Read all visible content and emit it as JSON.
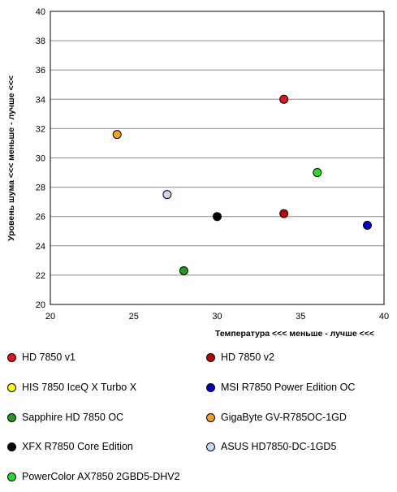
{
  "chart_data": {
    "type": "scatter",
    "title": "",
    "xlabel": "Температура <<< меньше - лучше <<<",
    "ylabel": "Уровень шума <<< меньше - лучше <<<",
    "xlim": [
      20,
      40
    ],
    "ylim": [
      20,
      40
    ],
    "x_ticks": [
      "20",
      "25",
      "30",
      "35",
      "40"
    ],
    "y_ticks": [
      "20",
      "22",
      "24",
      "26",
      "28",
      "30",
      "32",
      "34",
      "36",
      "38",
      "40"
    ],
    "grid": "horizontal",
    "legend_placement": "bottom",
    "series": [
      {
        "name": "HD 7850 v1",
        "color": "#e8141c",
        "x": 34,
        "y": 34
      },
      {
        "name": "HD 7850 v2",
        "color": "#c00000",
        "x": 34,
        "y": 26.2
      },
      {
        "name": "HIS 7850 IceQ X Turbo X",
        "color": "#ffff00"
      },
      {
        "name": "MSI R7850 Power Edition OC",
        "color": "#0000cc",
        "x": 39,
        "y": 25.4
      },
      {
        "name": "Sapphire HD 7850 OC",
        "color": "#1e9e1e",
        "x": 28,
        "y": 22.3
      },
      {
        "name": "GigaByte GV-R785OC-1GD",
        "color": "#f5a028",
        "x": 24,
        "y": 31.6
      },
      {
        "name": "XFX R7850 Core Edition",
        "color": "#000000",
        "x": 30,
        "y": 26
      },
      {
        "name": "ASUS HD7850-DC-1GD5",
        "color": "#c8d8f0",
        "x": 27,
        "y": 27.5
      },
      {
        "name": "PowerColor AX7850 2GBD5-DHV2",
        "color": "#22dd22",
        "x": 36,
        "y": 29
      }
    ]
  }
}
